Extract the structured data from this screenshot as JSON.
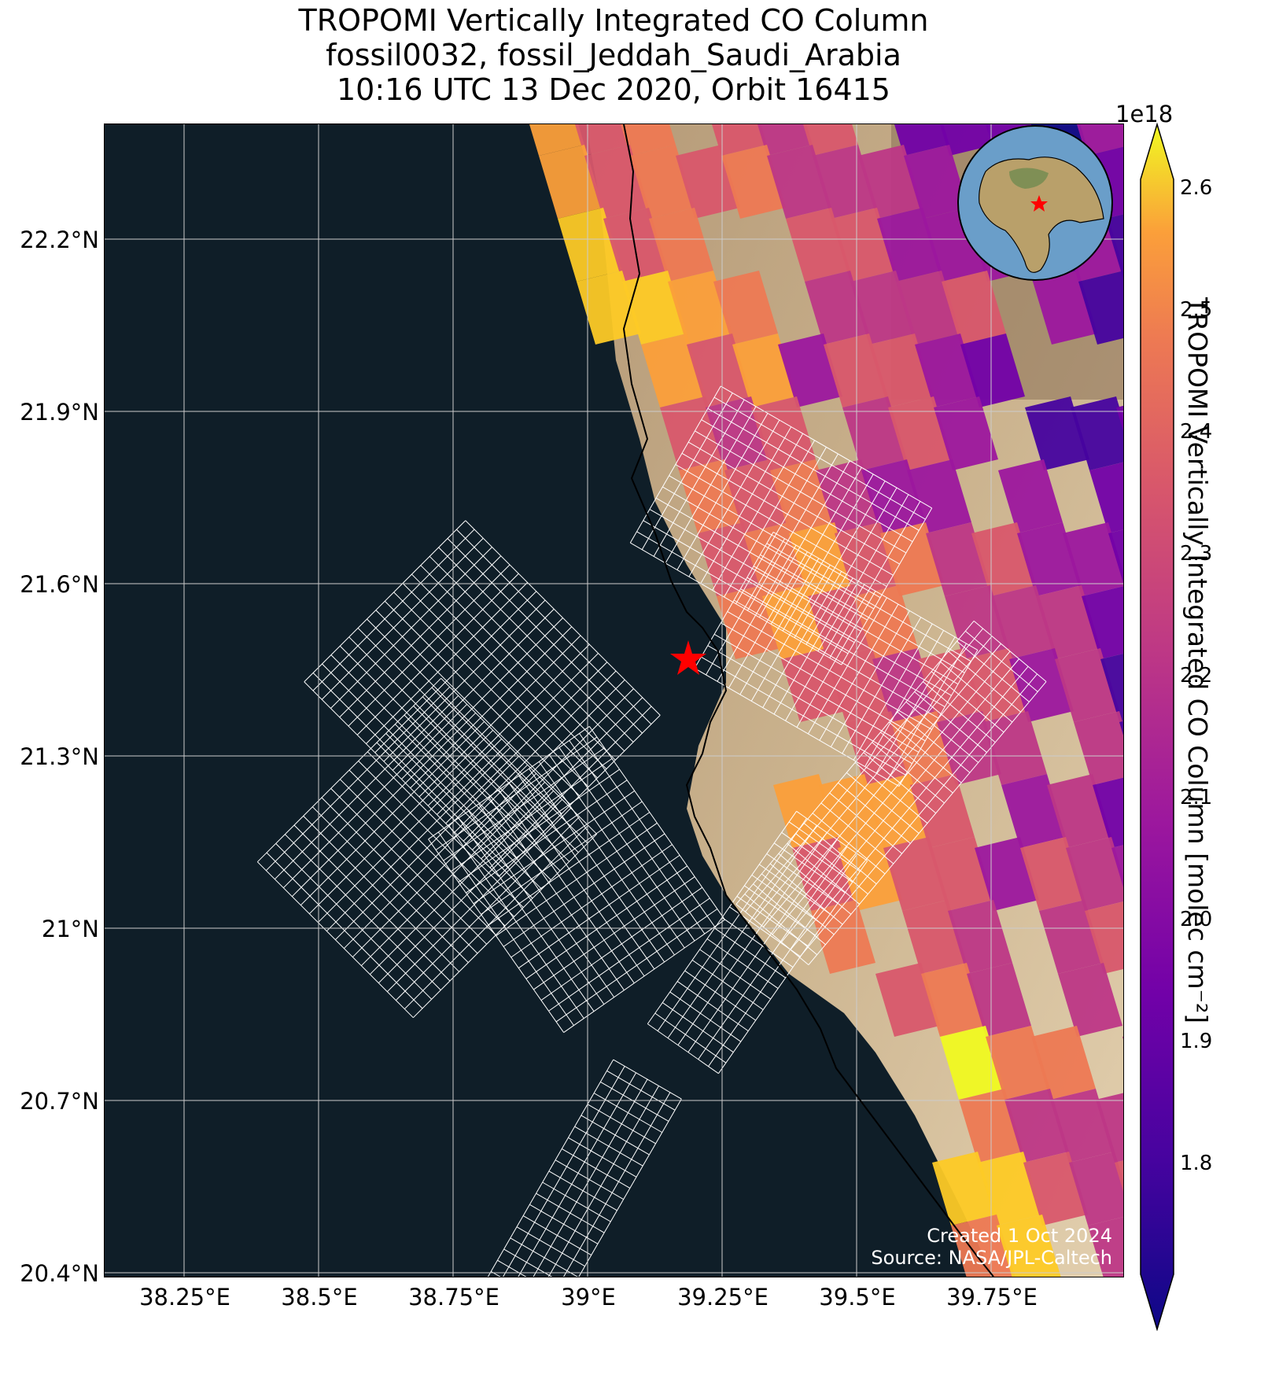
{
  "title_lines": [
    "TROPOMI Vertically Integrated CO Column",
    "fossil0032, fossil_Jeddah_Saudi_Arabia",
    "10:16 UTC 13 Dec 2020, Orbit 16415"
  ],
  "lat_ticks": [
    "22.2°N",
    "21.9°N",
    "21.6°N",
    "21.3°N",
    "21°N",
    "20.7°N",
    "20.4°N"
  ],
  "lon_ticks": [
    "38.25°E",
    "38.5°E",
    "38.75°E",
    "39°E",
    "39.25°E",
    "39.5°E",
    "39.75°E"
  ],
  "footer": {
    "created": "Created 1 Oct 2024",
    "source": "Source: NASA/JPL-Caltech"
  },
  "colorbar": {
    "exponent": "1e18",
    "ticks": [
      "2.6",
      "2.5",
      "2.4",
      "2.3",
      "2.2",
      "2.1",
      "2.0",
      "1.9",
      "1.8"
    ],
    "label": "TROPOMI Vertically Integrated CO Column [molec cm⁻²]",
    "colormap": "plasma",
    "range": [
      1.7,
      2.65
    ]
  },
  "site_marker": {
    "name": "Jeddah",
    "color": "#ff0000",
    "lat": 21.48,
    "lon": 39.18
  },
  "inset_globe": {
    "marker_color": "#ff0000"
  },
  "colors": {
    "ocean": "#0f1e28",
    "land": "#c9b08a",
    "grid": "#cccccc",
    "coast": "#000000",
    "target_grid": "#ffffff"
  }
}
